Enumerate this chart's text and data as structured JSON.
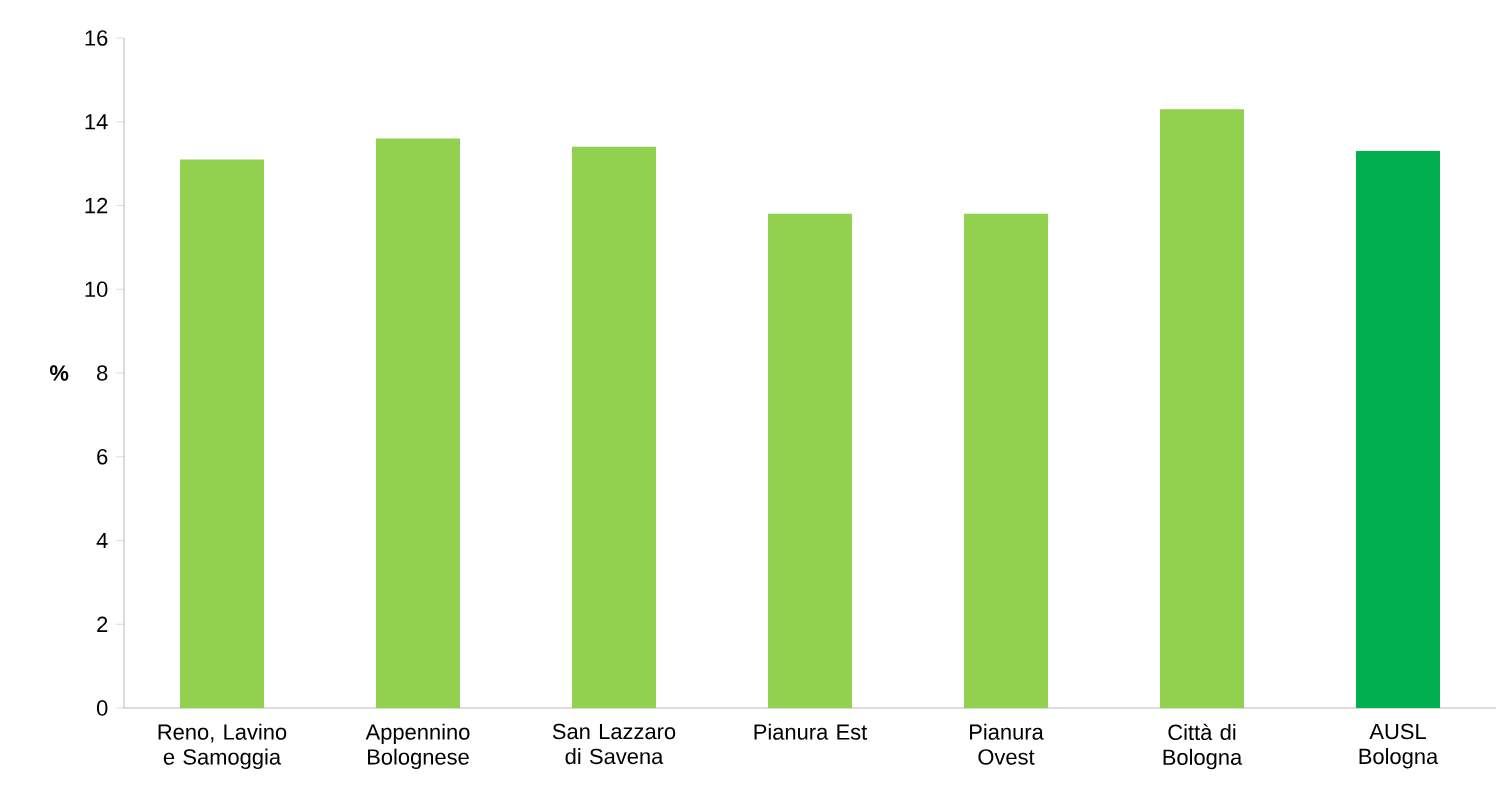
{
  "chart_data": {
    "type": "bar",
    "ylabel": "%",
    "categories": [
      "Reno, Lavino e Samoggia",
      "Appennino Bolognese",
      "San Lazzaro di Savena",
      "Pianura Est",
      "Pianura Ovest",
      "Città di Bologna",
      "AUSL Bologna"
    ],
    "values": [
      13.1,
      13.6,
      13.4,
      11.8,
      11.8,
      14.3,
      13.3
    ],
    "colors": [
      "#92d050",
      "#92d050",
      "#92d050",
      "#92d050",
      "#92d050",
      "#92d050",
      "#00b050"
    ],
    "ylim": [
      0,
      16
    ],
    "yticks": [
      0,
      2,
      4,
      6,
      8,
      10,
      12,
      14,
      16
    ]
  }
}
